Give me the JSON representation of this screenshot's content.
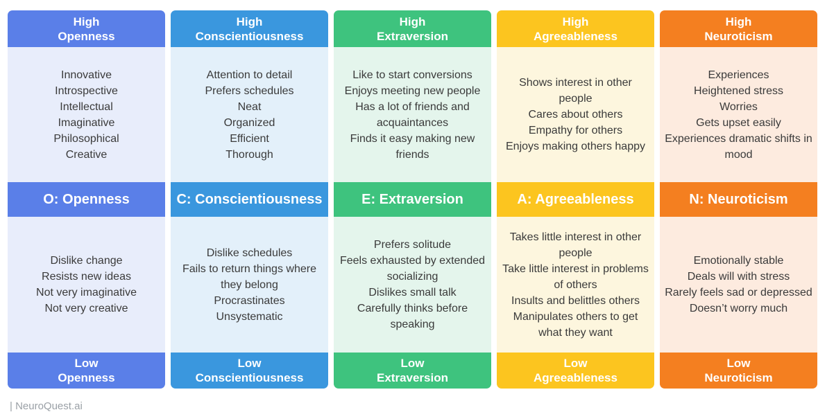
{
  "columns": [
    {
      "top_line1": "High",
      "top_line2": "Openness",
      "title": "O: Openness",
      "bottom_line1": "Low",
      "bottom_line2": "Openness",
      "color": "#5a7fe8",
      "bg": "#e8edfb",
      "high_traits": [
        "Innovative",
        "Introspective",
        "Intellectual",
        "Imaginative",
        "Philosophical",
        "Creative"
      ],
      "low_traits": [
        "Dislike change",
        "Resists new ideas",
        "Not very imaginative",
        "Not very creative"
      ]
    },
    {
      "top_line1": "High",
      "top_line2": "Conscientiousness",
      "title": "C: Conscientiousness",
      "bottom_line1": "Low",
      "bottom_line2": "Conscientiousness",
      "color": "#3a97de",
      "bg": "#e3f0fa",
      "high_traits": [
        "Attention to detail",
        "Prefers schedules",
        "Neat",
        "Organized",
        "Efficient",
        "Thorough"
      ],
      "low_traits": [
        "Dislike schedules",
        "Fails to return things where they belong",
        "Procrastinates",
        "Unsystematic"
      ]
    },
    {
      "top_line1": "High",
      "top_line2": "Extraversion",
      "title": "E: Extraversion",
      "bottom_line1": "Low",
      "bottom_line2": "Extraversion",
      "color": "#3ec37e",
      "bg": "#e4f5ec",
      "high_traits": [
        "Like to start conversions",
        "Enjoys meeting new people",
        "Has a lot of friends and acquaintances",
        "Finds it easy making new friends"
      ],
      "low_traits": [
        "Prefers solitude",
        "Feels exhausted by extended socializing",
        "Dislikes small talk",
        "Carefully thinks before speaking"
      ]
    },
    {
      "top_line1": "High",
      "top_line2": "Agreeableness",
      "title": "A: Agreeableness",
      "bottom_line1": "Low",
      "bottom_line2": "Agreeableness",
      "color": "#fcc51f",
      "bg": "#fdf6de",
      "high_traits": [
        "Shows interest in other people",
        "Cares about others",
        "Empathy for others",
        "Enjoys making others happy"
      ],
      "low_traits": [
        "Takes little interest in other people",
        "Take little interest in problems of others",
        "Insults and belittles others",
        "Manipulates others to get what they want"
      ]
    },
    {
      "top_line1": "High",
      "top_line2": "Neuroticism",
      "title": "N: Neuroticism",
      "bottom_line1": "Low",
      "bottom_line2": "Neuroticism",
      "color": "#f47f20",
      "bg": "#fdebdf",
      "high_traits": [
        "Experiences",
        "Heightened stress",
        "Worries",
        "Gets upset easily",
        "Experiences dramatic shifts in mood"
      ],
      "low_traits": [
        "Emotionally stable",
        "Deals will with stress",
        "Rarely feels sad or depressed",
        "Doesn’t worry much"
      ]
    }
  ],
  "footer": "| NeuroQuest.ai"
}
